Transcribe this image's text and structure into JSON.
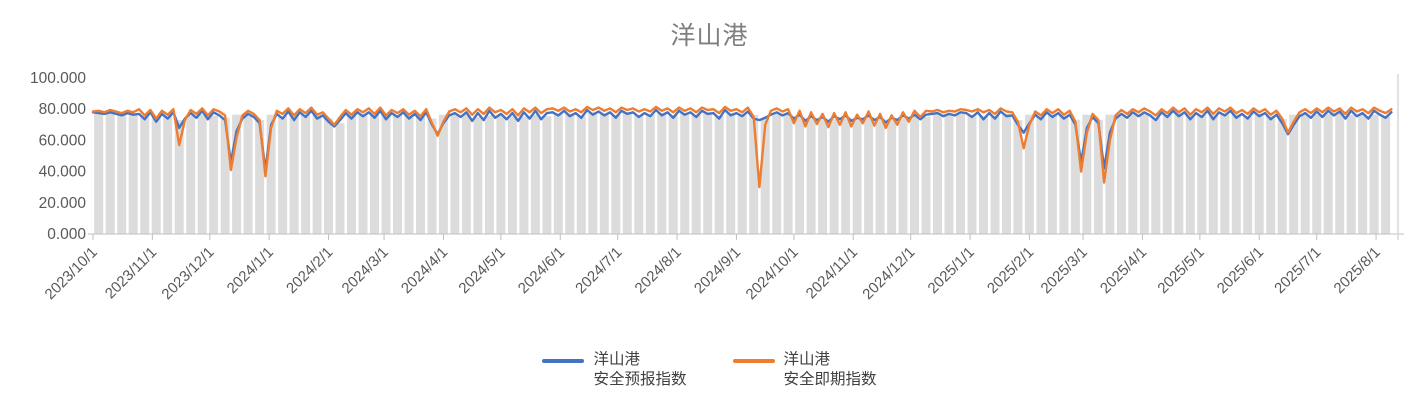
{
  "title": "洋山港",
  "colors": {
    "forecast_blue": "#4472C4",
    "spot_orange": "#ED7D31",
    "background_bar": "#DCDCDC",
    "axis_line": "#BFBFBF",
    "tick_label": "#595959",
    "title_gray": "#7F7F7F",
    "plot_right_border": "#D9D9D9"
  },
  "legend": {
    "items": [
      {
        "label": "洋山港\n安全预报指数",
        "color": "#4472C4"
      },
      {
        "label": "洋山港\n安全即期指数",
        "color": "#ED7D31"
      }
    ]
  },
  "chart_data": {
    "type": "line",
    "title": "洋山港",
    "xlabel": "",
    "ylabel": "",
    "ylim": [
      0,
      100
    ],
    "grid": false,
    "legend_position": "bottom",
    "x_start": "2023/10/1",
    "x_end": "2025/8/9",
    "step_days": 3,
    "y_tick_values": [
      100,
      80,
      60,
      40,
      20,
      0
    ],
    "y_tick_labels": [
      "100.000",
      "80.000",
      "60.000",
      "40.000",
      "20.000",
      "0.000"
    ],
    "x_tick_labels": [
      "2023/10/1",
      "2023/11/1",
      "2023/12/1",
      "2024/1/1",
      "2024/2/1",
      "2024/3/1",
      "2024/4/1",
      "2024/5/1",
      "2024/6/1",
      "2024/7/1",
      "2024/8/1",
      "2024/9/1",
      "2024/10/1",
      "2024/11/1",
      "2024/12/1",
      "2025/1/1",
      "2025/2/1",
      "2025/3/1",
      "2025/4/1",
      "2025/5/1",
      "2025/6/1",
      "2025/7/1",
      "2025/8/1"
    ],
    "x_tick_day_offsets": [
      0,
      31,
      61,
      92,
      123,
      152,
      183,
      213,
      244,
      274,
      305,
      336,
      366,
      397,
      427,
      458,
      489,
      517,
      548,
      578,
      609,
      639,
      670
    ],
    "notable_dips": [
      {
        "date": "2023/11/15",
        "spot": 57,
        "forecast": 68
      },
      {
        "date": "2023/12/12",
        "spot": 41,
        "forecast": 46
      },
      {
        "date": "2023/12/30",
        "spot": 37,
        "forecast": 41
      },
      {
        "date": "2024/3/29",
        "spot": 63,
        "forecast": 64
      },
      {
        "date": "2024/9/13",
        "spot": 30,
        "forecast": 73
      },
      {
        "date": "2025/1/30",
        "spot": 55,
        "forecast": 65
      },
      {
        "date": "2025/2/28",
        "spot": 40,
        "forecast": 46
      },
      {
        "date": "2025/3/12",
        "spot": 33,
        "forecast": 42
      },
      {
        "date": "2025/6/16",
        "spot": 65,
        "forecast": 64
      }
    ],
    "series": [
      {
        "name": "洋山港安全预报指数",
        "color": "#4472C4",
        "values": [
          78,
          77.5,
          77,
          78,
          77,
          76,
          77.5,
          76.5,
          77,
          73.5,
          78,
          72,
          77,
          74,
          78,
          68,
          74,
          77.5,
          74.5,
          79,
          73.5,
          78,
          76,
          73,
          46,
          66,
          74,
          77,
          75,
          71,
          41,
          70,
          77,
          74,
          78.5,
          73,
          78,
          75,
          79,
          74,
          76,
          72,
          69,
          73,
          77.5,
          74,
          78,
          75.5,
          78,
          74.5,
          79,
          73.5,
          77.5,
          75,
          78,
          74,
          77,
          73,
          78,
          70,
          64,
          71,
          76,
          77.5,
          75,
          78,
          72.5,
          77.5,
          73,
          79,
          74.5,
          77,
          73.5,
          77.5,
          72.5,
          78,
          74,
          79,
          73.5,
          77.5,
          78,
          76,
          79,
          75.5,
          77.5,
          74.5,
          79.5,
          76.5,
          78.5,
          76,
          78,
          74.5,
          79,
          77,
          78,
          75,
          77.5,
          75.5,
          79.5,
          76,
          78,
          74.5,
          79,
          76.5,
          78,
          75,
          79,
          77,
          77.5,
          74,
          79.5,
          76,
          77.5,
          75.5,
          78.5,
          74,
          73,
          74.5,
          76.5,
          78,
          76,
          77.5,
          74,
          76.5,
          72.5,
          75.5,
          73,
          75,
          72,
          75.5,
          73.5,
          76,
          72.5,
          74.5,
          73.5,
          76,
          73,
          75,
          71.5,
          74.5,
          73,
          76,
          74,
          76.5,
          73.5,
          76.5,
          77,
          77.5,
          75.5,
          77,
          76,
          78,
          77.5,
          75,
          78,
          73.5,
          77.5,
          74,
          78.5,
          75.5,
          76,
          70,
          65,
          71,
          76.5,
          73.5,
          78,
          75,
          77.5,
          74,
          76.5,
          70,
          46,
          68,
          75,
          71,
          42,
          65,
          74,
          77,
          74.5,
          78,
          75.5,
          78,
          76,
          73,
          78,
          75,
          79,
          75.5,
          78,
          73.5,
          77.5,
          75,
          79,
          73.5,
          78,
          76,
          79,
          74.5,
          77,
          74,
          78.5,
          75.5,
          77.5,
          73.5,
          76.5,
          71,
          64,
          70,
          75.5,
          77.5,
          74.5,
          78.5,
          75,
          79,
          76,
          78.5,
          74,
          79,
          75.5,
          77.5,
          74,
          79,
          76.5,
          74.5,
          78
        ]
      },
      {
        "name": "洋山港安全即期指数",
        "color": "#ED7D31",
        "values": [
          78.5,
          79,
          78,
          79.5,
          78.5,
          77.5,
          79,
          78,
          80,
          76,
          79.5,
          74,
          79,
          76.5,
          80,
          57,
          73,
          79.5,
          77,
          80.5,
          76,
          80,
          78.5,
          76,
          41,
          62,
          76,
          79,
          77,
          73,
          37,
          68,
          79,
          77,
          80.5,
          76,
          80,
          77.5,
          81,
          76.5,
          78,
          74,
          70,
          75,
          79.5,
          76.5,
          80,
          78,
          80.5,
          77,
          81,
          76,
          79.5,
          77.5,
          80,
          76.5,
          79,
          75.5,
          80,
          71,
          63,
          72,
          78.5,
          80,
          78,
          80.5,
          76.5,
          80,
          77,
          81,
          78,
          79.5,
          77,
          80,
          76,
          80.5,
          78,
          81,
          77.5,
          80,
          80.5,
          79,
          81,
          78.5,
          80,
          78,
          81.5,
          79.5,
          81,
          79,
          80.5,
          78,
          81,
          79.5,
          80.5,
          78.5,
          80,
          78.5,
          81.5,
          79,
          80.5,
          78,
          81,
          79,
          80.5,
          78,
          81,
          79.5,
          80,
          77.5,
          81.5,
          79,
          80,
          78,
          81,
          75,
          30,
          70,
          79,
          80.5,
          78.5,
          80,
          71,
          79,
          69,
          78,
          70.5,
          77,
          68.5,
          77.5,
          70,
          78,
          69,
          76.5,
          71,
          78.5,
          69.5,
          77,
          68,
          76,
          70,
          78,
          72,
          79,
          75,
          79,
          78.5,
          79.5,
          78,
          79,
          78.5,
          80,
          79.5,
          78.5,
          80,
          78,
          79.5,
          77,
          80.5,
          78.5,
          78,
          72,
          55,
          70,
          78.5,
          76,
          80,
          77.5,
          80,
          76.5,
          79,
          72,
          40,
          65,
          77,
          73,
          33,
          60,
          76,
          79.5,
          77,
          80,
          78,
          80.5,
          78.5,
          76,
          80,
          77.5,
          81,
          78,
          80.5,
          76.5,
          80,
          78,
          81,
          77,
          80.5,
          78.5,
          81,
          77.5,
          79.5,
          77,
          80.5,
          78,
          80,
          76.5,
          79,
          74,
          65,
          72,
          78,
          80,
          77.5,
          80.5,
          78,
          81,
          78.5,
          80.5,
          77,
          81,
          78.5,
          80,
          77.5,
          81,
          79,
          77.5,
          80
        ]
      }
    ],
    "background_bars": {
      "description": "light gray columns behind lines, one per ~6 days, height tracks forecast level",
      "color": "#DCDCDC"
    }
  }
}
